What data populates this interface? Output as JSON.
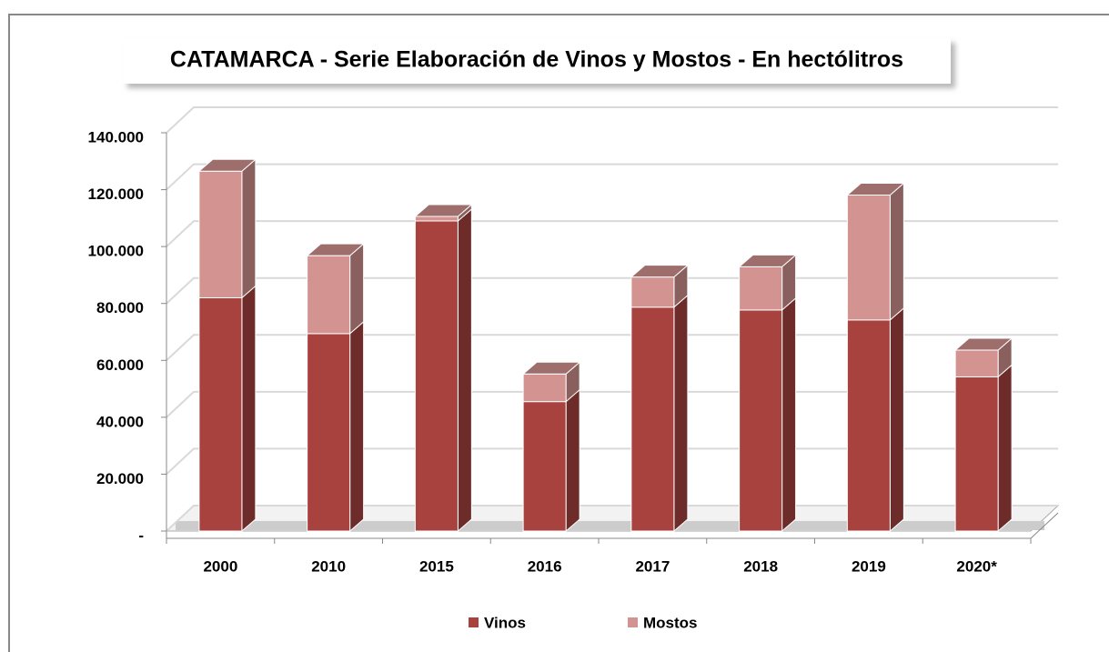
{
  "chart_data": {
    "type": "bar",
    "stacked": true,
    "title": "CATAMARCA - Serie Elaboración de Vinos y Mostos - En hectólitros",
    "categories": [
      "2000",
      "2010",
      "2015",
      "2016",
      "2017",
      "2018",
      "2019",
      "2020*"
    ],
    "series": [
      {
        "name": "Vinos",
        "color": "#a8423f",
        "values": [
          82000,
          69400,
          109000,
          45500,
          78700,
          77700,
          74200,
          54200
        ]
      },
      {
        "name": "Mostos",
        "color": "#d39391",
        "values": [
          44500,
          27400,
          1600,
          9700,
          10600,
          15200,
          43900,
          9400
        ]
      }
    ],
    "ylim": [
      0,
      140000
    ],
    "yticks": [
      {
        "value": 0,
        "label": "-"
      },
      {
        "value": 20000,
        "label": "20.000"
      },
      {
        "value": 40000,
        "label": "40.000"
      },
      {
        "value": 60000,
        "label": "60.000"
      },
      {
        "value": 80000,
        "label": "80.000"
      },
      {
        "value": 100000,
        "label": "100.000"
      },
      {
        "value": 120000,
        "label": "120.000"
      },
      {
        "value": 140000,
        "label": "140.000"
      }
    ],
    "grid": true,
    "legend": "bottom"
  }
}
